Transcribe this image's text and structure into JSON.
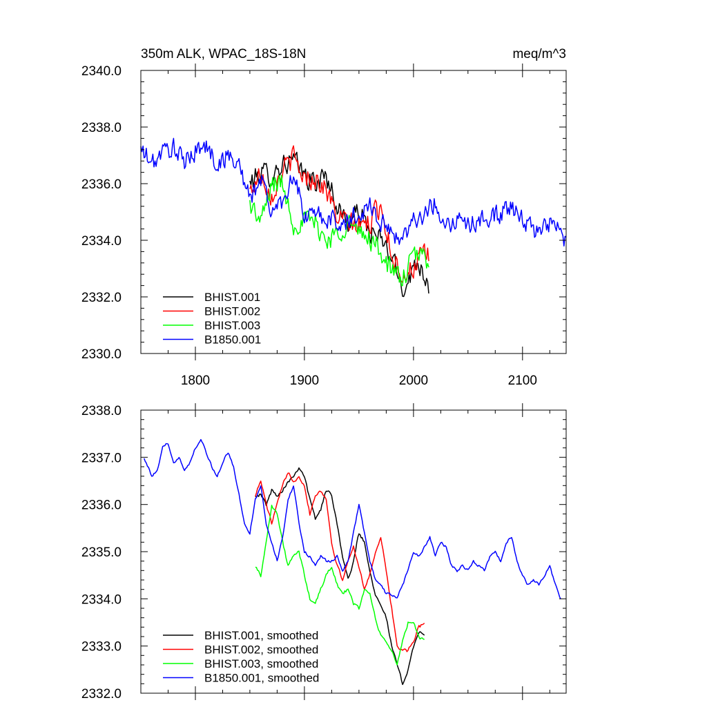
{
  "chart_data": [
    {
      "type": "line",
      "title": "350m ALK, WPAC_18S-18N",
      "units": "meq/m^3",
      "xlim": [
        1750,
        2140
      ],
      "ylim": [
        2330,
        2340
      ],
      "x_ticks": [
        1800,
        1900,
        2000,
        2100
      ],
      "x_tick_labels": [
        "1800",
        "1900",
        "2000",
        "2100"
      ],
      "y_ticks": [
        2330,
        2332,
        2334,
        2336,
        2338,
        2340
      ],
      "y_tick_labels": [
        "2330.0",
        "2332.0",
        "2334.0",
        "2336.0",
        "2338.0",
        "2340.0"
      ],
      "legend_position": "bottom-left",
      "grid": false,
      "series": [
        {
          "name": "BHIST.001",
          "color": "#000000",
          "noise": 0.55,
          "x": [
            1850,
            1860,
            1870,
            1880,
            1890,
            1900,
            1910,
            1920,
            1930,
            1940,
            1950,
            1960,
            1970,
            1980,
            1990,
            2000,
            2005,
            2014
          ],
          "y": [
            2336.0,
            2336.4,
            2336.3,
            2336.7,
            2336.8,
            2336.3,
            2336.0,
            2336.3,
            2335.2,
            2334.6,
            2335.0,
            2334.3,
            2334.0,
            2333.4,
            2332.3,
            2333.0,
            2333.3,
            2332.4
          ]
        },
        {
          "name": "BHIST.002",
          "color": "#ff0000",
          "noise": 0.55,
          "x": [
            1850,
            1860,
            1870,
            1880,
            1890,
            1900,
            1910,
            1920,
            1930,
            1940,
            1950,
            1960,
            1970,
            1980,
            1990,
            2000,
            2005,
            2014
          ],
          "y": [
            2335.7,
            2336.4,
            2335.6,
            2336.5,
            2336.9,
            2336.2,
            2336.2,
            2335.8,
            2334.8,
            2334.6,
            2334.5,
            2334.6,
            2335.3,
            2333.5,
            2332.8,
            2333.0,
            2333.4,
            2333.4
          ]
        },
        {
          "name": "BHIST.003",
          "color": "#00ff00",
          "noise": 0.55,
          "x": [
            1850,
            1860,
            1870,
            1880,
            1890,
            1900,
            1910,
            1920,
            1930,
            1940,
            1950,
            1960,
            1970,
            1980,
            1990,
            2000,
            2005,
            2014
          ],
          "y": [
            2335.3,
            2334.6,
            2336.0,
            2336.0,
            2334.6,
            2334.7,
            2334.6,
            2334.0,
            2334.2,
            2334.7,
            2334.2,
            2334.1,
            2333.6,
            2332.9,
            2332.6,
            2333.4,
            2333.5,
            2333.3
          ]
        },
        {
          "name": "B1850.001",
          "color": "#0000ff",
          "noise": 0.5,
          "x": [
            1750,
            1760,
            1770,
            1780,
            1790,
            1800,
            1810,
            1820,
            1830,
            1840,
            1850,
            1860,
            1870,
            1880,
            1890,
            1900,
            1910,
            1920,
            1930,
            1940,
            1950,
            1960,
            1970,
            1980,
            1990,
            2000,
            2010,
            2020,
            2030,
            2040,
            2050,
            2060,
            2070,
            2080,
            2090,
            2100,
            2110,
            2120,
            2130,
            2140
          ],
          "y": [
            2337.2,
            2336.7,
            2337.1,
            2337.3,
            2336.7,
            2337.2,
            2337.3,
            2336.7,
            2337.0,
            2336.7,
            2335.4,
            2336.2,
            2335.0,
            2335.4,
            2336.4,
            2334.8,
            2334.9,
            2334.8,
            2334.6,
            2334.7,
            2334.9,
            2335.3,
            2334.6,
            2334.3,
            2334.0,
            2334.8,
            2334.9,
            2335.3,
            2334.6,
            2334.7,
            2334.6,
            2334.6,
            2334.9,
            2334.9,
            2335.2,
            2334.7,
            2334.3,
            2334.6,
            2334.5,
            2334.0
          ]
        }
      ]
    },
    {
      "type": "line",
      "title": "",
      "xlim": [
        1750,
        2140
      ],
      "ylim": [
        2332,
        2338
      ],
      "x_ticks": [
        1800,
        1900,
        2000,
        2100
      ],
      "x_tick_labels": [],
      "y_ticks": [
        2332,
        2333,
        2334,
        2335,
        2336,
        2337,
        2338
      ],
      "y_tick_labels": [
        "2332.0",
        "2333.0",
        "2334.0",
        "2335.0",
        "2336.0",
        "2337.0",
        "2338.0"
      ],
      "legend_position": "bottom-left",
      "grid": false,
      "series": [
        {
          "name": "BHIST.001, smoothed",
          "color": "#000000",
          "noise": 0.05,
          "x": [
            1855,
            1860,
            1865,
            1870,
            1875,
            1880,
            1885,
            1890,
            1895,
            1900,
            1905,
            1910,
            1915,
            1920,
            1925,
            1930,
            1935,
            1940,
            1945,
            1950,
            1955,
            1960,
            1965,
            1970,
            1975,
            1980,
            1985,
            1990,
            1995,
            2000,
            2005,
            2010
          ],
          "y": [
            2336.2,
            2336.2,
            2336.0,
            2336.3,
            2336.2,
            2336.3,
            2336.5,
            2336.6,
            2336.8,
            2336.6,
            2336.1,
            2335.7,
            2335.9,
            2336.3,
            2336.2,
            2335.6,
            2334.9,
            2334.4,
            2334.8,
            2335.4,
            2335.2,
            2334.6,
            2334.1,
            2333.9,
            2333.6,
            2333.0,
            2332.6,
            2332.2,
            2332.5,
            2333.0,
            2333.3,
            2333.2
          ]
        },
        {
          "name": "BHIST.002, smoothed",
          "color": "#ff0000",
          "noise": 0.05,
          "x": [
            1855,
            1860,
            1865,
            1870,
            1875,
            1880,
            1885,
            1890,
            1895,
            1900,
            1905,
            1910,
            1915,
            1920,
            1925,
            1930,
            1935,
            1940,
            1945,
            1950,
            1955,
            1960,
            1965,
            1970,
            1975,
            1980,
            1985,
            1990,
            1995,
            2000,
            2005,
            2010
          ],
          "y": [
            2336.2,
            2336.5,
            2336.0,
            2335.6,
            2336.0,
            2336.4,
            2336.7,
            2336.5,
            2336.6,
            2336.4,
            2335.8,
            2336.2,
            2336.3,
            2336.1,
            2335.2,
            2334.7,
            2334.4,
            2334.8,
            2335.1,
            2334.7,
            2334.2,
            2334.5,
            2335.0,
            2335.3,
            2334.6,
            2333.8,
            2333.0,
            2332.9,
            2332.9,
            2333.1,
            2333.4,
            2333.5
          ]
        },
        {
          "name": "BHIST.003, smoothed",
          "color": "#00ff00",
          "noise": 0.05,
          "x": [
            1855,
            1860,
            1865,
            1870,
            1875,
            1880,
            1885,
            1890,
            1895,
            1900,
            1905,
            1910,
            1915,
            1920,
            1925,
            1930,
            1935,
            1940,
            1945,
            1950,
            1955,
            1960,
            1965,
            1970,
            1975,
            1980,
            1985,
            1990,
            1995,
            2000,
            2005,
            2010
          ],
          "y": [
            2334.7,
            2334.5,
            2335.2,
            2336.0,
            2335.8,
            2335.2,
            2334.7,
            2334.9,
            2335.0,
            2334.5,
            2334.0,
            2333.9,
            2334.2,
            2334.5,
            2334.7,
            2334.3,
            2334.1,
            2334.2,
            2333.9,
            2333.8,
            2334.2,
            2334.1,
            2333.6,
            2333.2,
            2333.1,
            2332.9,
            2332.6,
            2333.1,
            2333.5,
            2333.5,
            2333.2,
            2333.1
          ]
        },
        {
          "name": "B1850.001, smoothed",
          "color": "#0000ff",
          "noise": 0.04,
          "x": [
            1753,
            1760,
            1765,
            1770,
            1775,
            1780,
            1785,
            1790,
            1795,
            1800,
            1805,
            1810,
            1815,
            1820,
            1825,
            1830,
            1835,
            1840,
            1845,
            1850,
            1855,
            1860,
            1865,
            1870,
            1875,
            1880,
            1885,
            1890,
            1895,
            1900,
            1905,
            1910,
            1915,
            1920,
            1925,
            1930,
            1935,
            1940,
            1945,
            1950,
            1955,
            1960,
            1965,
            1970,
            1975,
            1980,
            1985,
            1990,
            1995,
            2000,
            2005,
            2010,
            2015,
            2020,
            2025,
            2030,
            2035,
            2040,
            2045,
            2050,
            2055,
            2060,
            2065,
            2070,
            2075,
            2080,
            2085,
            2090,
            2095,
            2100,
            2105,
            2110,
            2115,
            2120,
            2125,
            2130,
            2135
          ],
          "y": [
            2337.0,
            2336.6,
            2336.7,
            2337.2,
            2337.3,
            2336.9,
            2337.0,
            2336.7,
            2336.9,
            2337.2,
            2337.4,
            2337.1,
            2336.8,
            2336.6,
            2336.9,
            2337.1,
            2336.8,
            2336.2,
            2335.6,
            2335.4,
            2336.1,
            2336.4,
            2335.6,
            2335.2,
            2334.8,
            2335.3,
            2336.1,
            2336.4,
            2335.6,
            2335.0,
            2334.9,
            2334.7,
            2334.9,
            2334.8,
            2334.8,
            2334.9,
            2334.6,
            2334.8,
            2335.4,
            2336.0,
            2335.4,
            2334.8,
            2334.4,
            2334.3,
            2334.1,
            2334.1,
            2334.0,
            2334.3,
            2334.6,
            2335.0,
            2334.9,
            2335.1,
            2335.3,
            2334.9,
            2335.2,
            2335.1,
            2334.7,
            2334.6,
            2334.7,
            2334.6,
            2334.8,
            2334.7,
            2334.6,
            2334.9,
            2335.0,
            2334.8,
            2335.2,
            2335.3,
            2334.8,
            2334.5,
            2334.3,
            2334.4,
            2334.3,
            2334.5,
            2334.7,
            2334.3,
            2334.0
          ]
        }
      ]
    }
  ]
}
